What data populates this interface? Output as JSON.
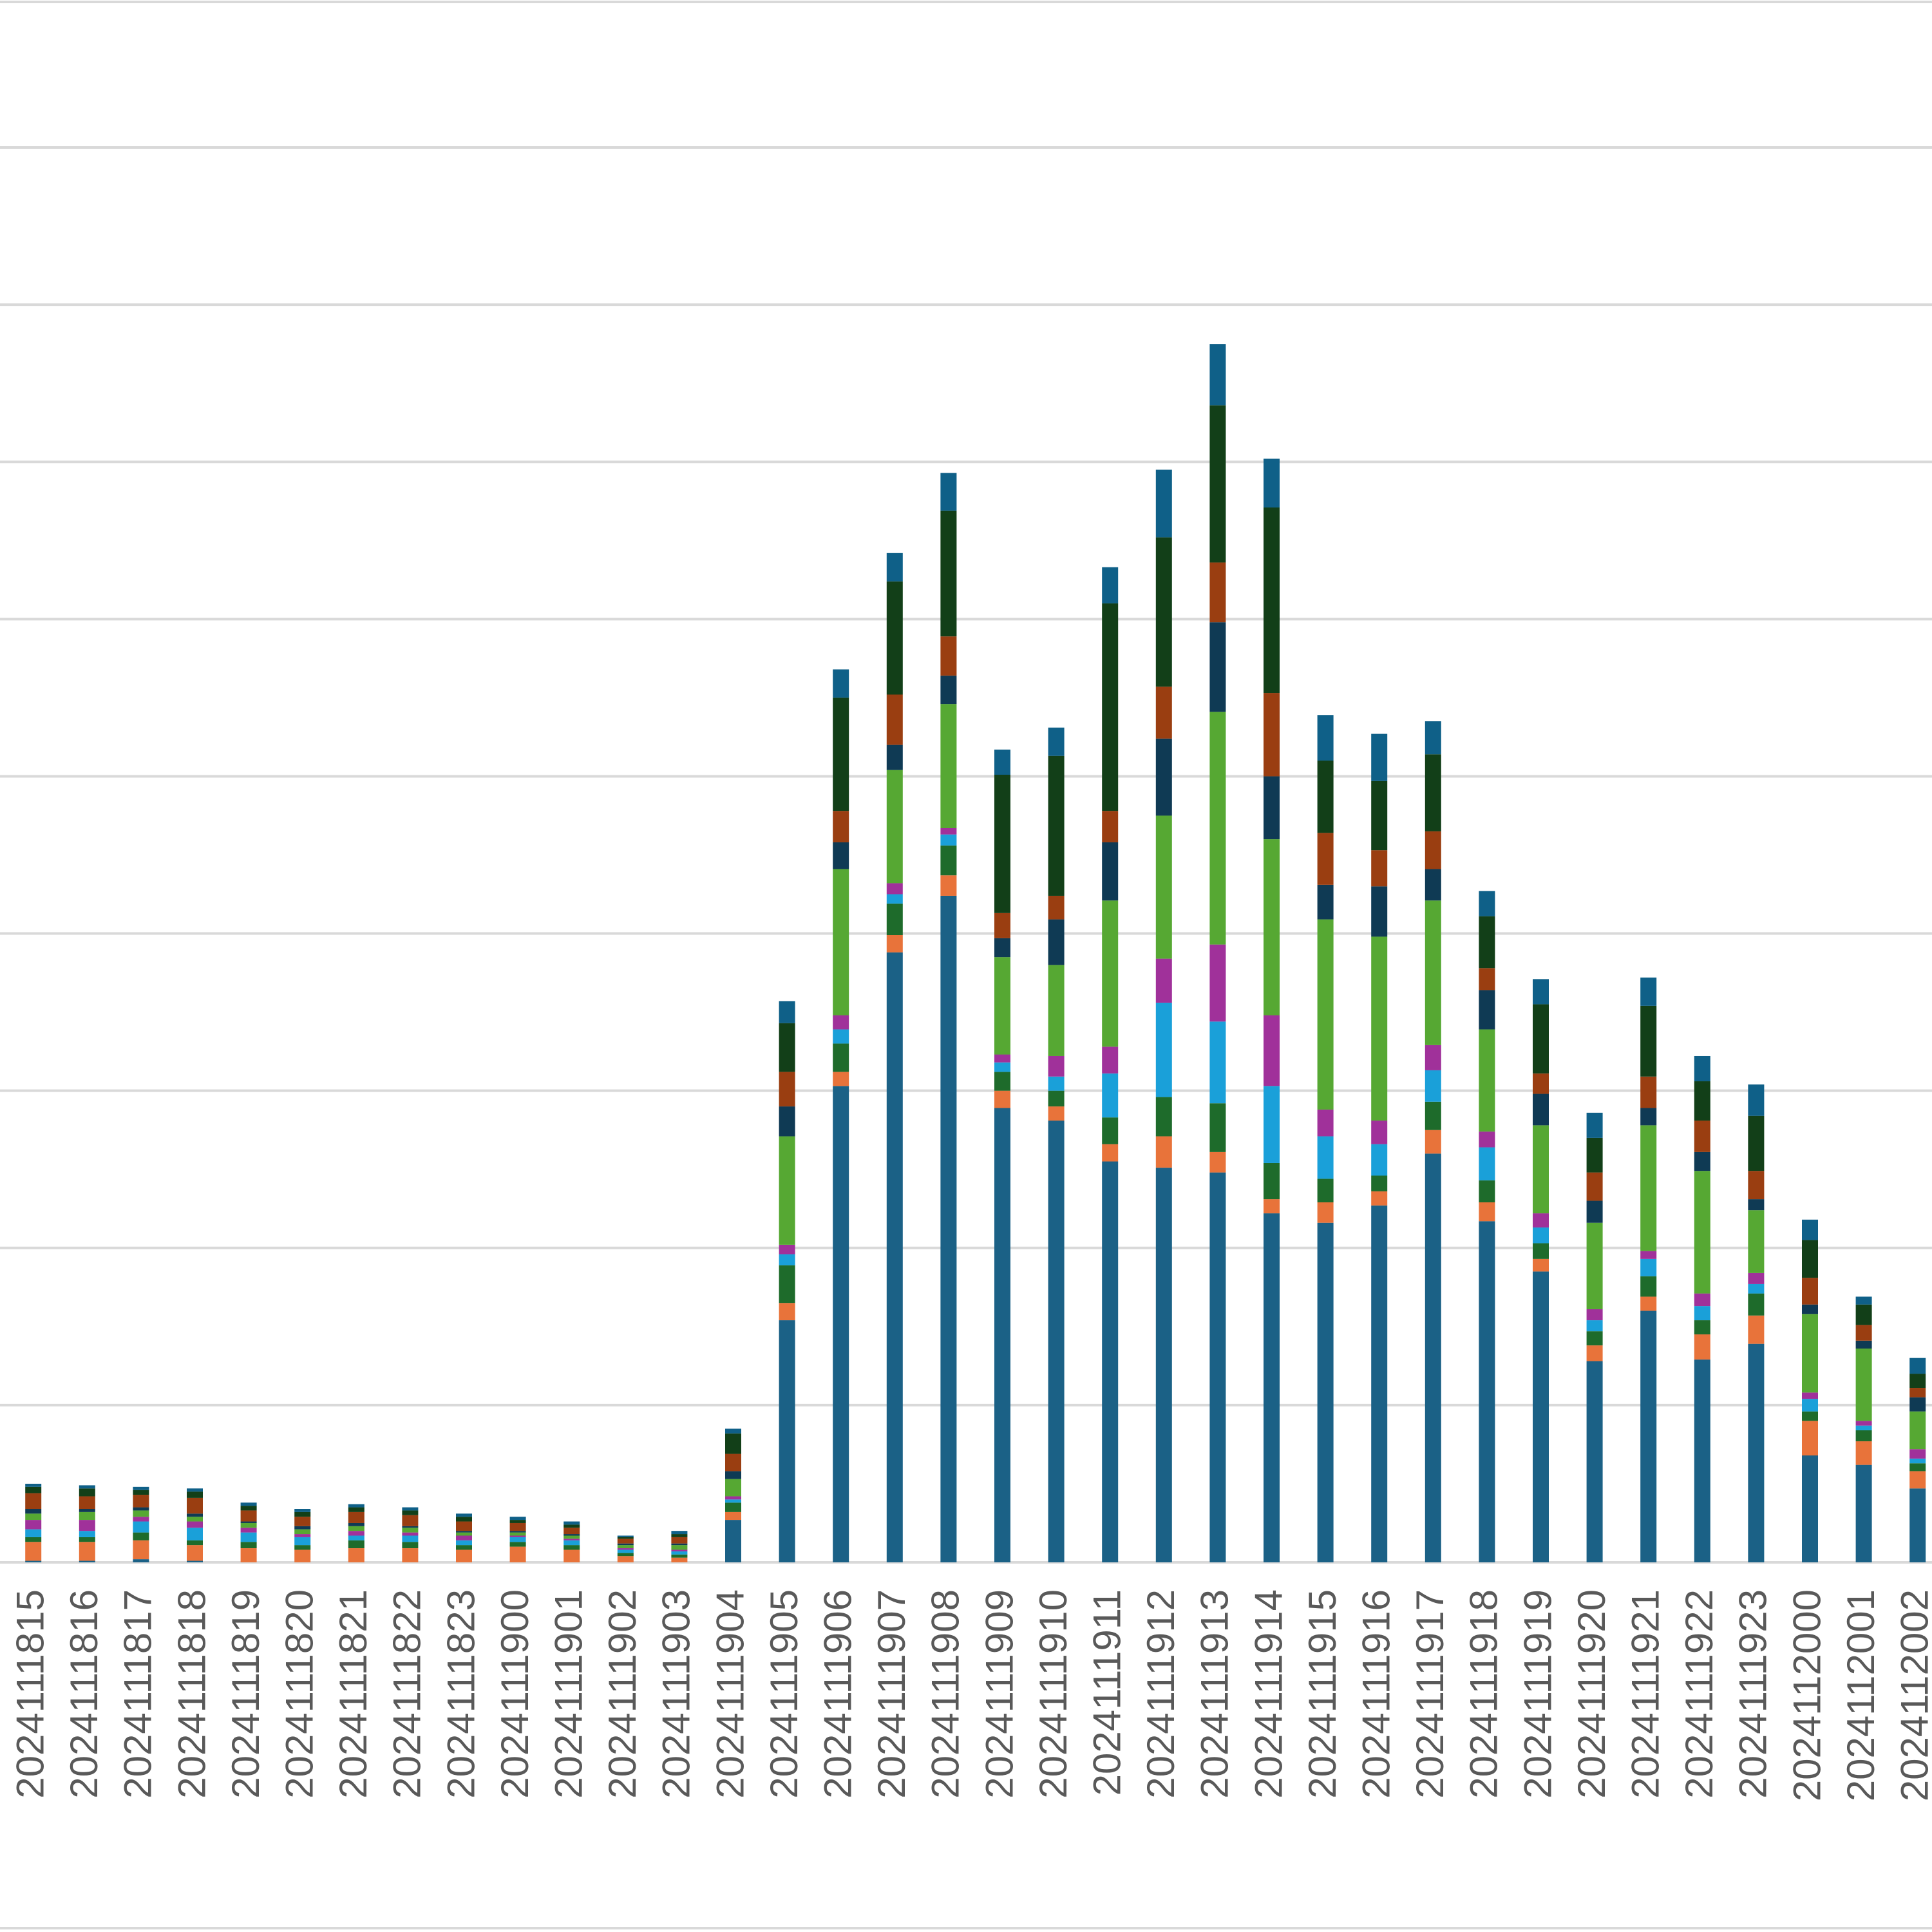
{
  "chart_data": {
    "type": "stacked_bar",
    "categories": [
      "2024111815",
      "2024111816",
      "2024111817",
      "2024111818",
      "2024111819",
      "2024111820",
      "2024111821",
      "2024111822",
      "2024111823",
      "2024111900",
      "2024111901",
      "2024111902",
      "2024111903",
      "2024111904",
      "2024111905",
      "2024111906",
      "2024111907",
      "2024111908",
      "2024111909",
      "2024111910",
      "2024111911",
      "2024111912",
      "2024111913",
      "2024111914",
      "2024111915",
      "2024111916",
      "2024111917",
      "2024111918",
      "2024111919",
      "2024111920",
      "2024111921",
      "2024111922",
      "2024111923",
      "2024112000",
      "2024112001",
      "2024112002"
    ],
    "series": [
      {
        "color": "#1b6186",
        "values": [
          0.1,
          0.1,
          0.2,
          0.1,
          0,
          0,
          0,
          0,
          0,
          0,
          0,
          0,
          0,
          2.7,
          15.4,
          30.3,
          38.8,
          42.4,
          28.9,
          28.1,
          25.5,
          25.1,
          24.8,
          22.2,
          21.6,
          22.7,
          26.0,
          21.7,
          18.5,
          12.8,
          16.0,
          12.9,
          13.9,
          6.8,
          6.2,
          4.7
        ]
      },
      {
        "color": "#e8733a",
        "values": [
          1.2,
          1.2,
          1.2,
          1.0,
          0.9,
          0.8,
          0.9,
          0.9,
          0.8,
          1.0,
          0.8,
          0.4,
          0.3,
          0.5,
          1.1,
          0.9,
          1.1,
          1.3,
          1.1,
          0.9,
          1.1,
          2.0,
          1.3,
          0.9,
          1.3,
          0.9,
          1.5,
          1.2,
          0.8,
          1.0,
          0.9,
          1.6,
          1.8,
          2.2,
          1.5,
          1.1
        ]
      },
      {
        "color": "#1e6b2b",
        "values": [
          0.3,
          0.3,
          0.5,
          0.3,
          0.4,
          0.3,
          0.5,
          0.4,
          0.3,
          0.3,
          0.3,
          0.2,
          0.2,
          0.6,
          2.4,
          1.8,
          2.0,
          1.9,
          1.2,
          1.0,
          1.7,
          2.5,
          3.1,
          2.3,
          1.5,
          1.0,
          1.8,
          1.4,
          1.0,
          0.9,
          1.3,
          0.9,
          1.4,
          0.6,
          0.7,
          0.5
        ]
      },
      {
        "color": "#1aa0d9",
        "values": [
          0.5,
          0.4,
          0.7,
          0.8,
          0.6,
          0.5,
          0.3,
          0.4,
          0.3,
          0.3,
          0.3,
          0.2,
          0.2,
          0.2,
          0.7,
          0.9,
          0.6,
          0.7,
          0.6,
          0.9,
          2.8,
          6.0,
          5.2,
          4.9,
          2.7,
          2.0,
          2.0,
          2.1,
          1.0,
          0.7,
          1.1,
          0.9,
          0.6,
          0.8,
          0.3,
          0.3
        ]
      },
      {
        "color": "#a0319a",
        "values": [
          0.6,
          0.7,
          0.3,
          0.4,
          0.3,
          0.2,
          0.3,
          0.2,
          0.3,
          0.1,
          0.1,
          0.1,
          0.1,
          0.2,
          0.6,
          0.9,
          0.7,
          0.4,
          0.5,
          1.3,
          1.7,
          2.8,
          4.9,
          4.5,
          1.7,
          1.5,
          1.6,
          1.0,
          0.9,
          0.7,
          0.5,
          0.8,
          0.7,
          0.4,
          0.3,
          0.6
        ]
      },
      {
        "color": "#56a833",
        "values": [
          0.4,
          0.5,
          0.4,
          0.3,
          0.3,
          0.3,
          0.3,
          0.3,
          0.2,
          0.2,
          0.2,
          0.2,
          0.3,
          1.1,
          6.9,
          9.3,
          7.2,
          7.9,
          6.2,
          5.8,
          9.3,
          9.1,
          14.8,
          11.2,
          12.1,
          11.7,
          9.2,
          6.5,
          5.6,
          5.5,
          8.0,
          7.8,
          4.0,
          5.0,
          4.6,
          2.4
        ]
      },
      {
        "color": "#0f3a54",
        "values": [
          0.3,
          0.2,
          0.2,
          0.2,
          0.1,
          0.2,
          0.2,
          0.1,
          0.1,
          0.1,
          0.1,
          0.1,
          0.1,
          0.5,
          1.9,
          1.7,
          1.6,
          1.8,
          1.2,
          2.9,
          3.7,
          4.9,
          5.7,
          4.0,
          2.2,
          3.2,
          2.0,
          2.5,
          2.0,
          1.4,
          1.1,
          1.2,
          0.7,
          0.6,
          0.5,
          0.9
        ]
      },
      {
        "color": "#9a3e11",
        "values": [
          1.0,
          0.8,
          0.8,
          1.0,
          0.7,
          0.6,
          0.7,
          0.7,
          0.6,
          0.5,
          0.4,
          0.3,
          0.4,
          1.1,
          2.2,
          2.0,
          3.2,
          2.5,
          1.6,
          1.5,
          2.0,
          3.3,
          3.8,
          5.3,
          3.3,
          2.3,
          2.4,
          1.4,
          1.3,
          1.8,
          2.0,
          2.0,
          1.8,
          1.7,
          1.0,
          0.6
        ]
      },
      {
        "color": "#123f18",
        "values": [
          0.4,
          0.5,
          0.3,
          0.4,
          0.3,
          0.3,
          0.3,
          0.3,
          0.3,
          0.2,
          0.2,
          0.1,
          0.2,
          1.3,
          3.1,
          7.2,
          7.2,
          8.0,
          8.8,
          8.9,
          13.2,
          9.5,
          10.0,
          11.8,
          4.6,
          4.4,
          4.9,
          3.3,
          4.4,
          2.2,
          4.5,
          2.5,
          3.5,
          2.4,
          1.3,
          0.9
        ]
      },
      {
        "color": "#0f6088",
        "values": [
          0.2,
          0.2,
          0.2,
          0.2,
          0.2,
          0.2,
          0.2,
          0.2,
          0.2,
          0.2,
          0.2,
          0.1,
          0.2,
          0.3,
          1.4,
          1.8,
          1.8,
          2.4,
          1.6,
          1.8,
          2.3,
          4.3,
          3.9,
          3.1,
          2.9,
          3.0,
          2.1,
          1.6,
          1.6,
          1.6,
          1.8,
          1.6,
          2.0,
          1.3,
          0.5,
          1.0
        ]
      }
    ],
    "ylim": [
      0,
      90
    ],
    "yticks": [
      0,
      10,
      20,
      30,
      40,
      50,
      60,
      70,
      80,
      90
    ],
    "grid": true
  }
}
